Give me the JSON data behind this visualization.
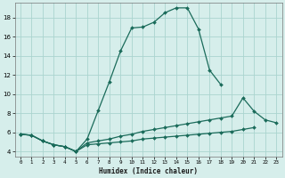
{
  "xlabel": "Humidex (Indice chaleur)",
  "background_color": "#d6eeeb",
  "grid_color": "#aad4cf",
  "line_color": "#1a6b5a",
  "xlim": [
    -0.5,
    23.5
  ],
  "ylim": [
    3.5,
    19.5
  ],
  "xticks": [
    0,
    1,
    2,
    3,
    4,
    5,
    6,
    7,
    8,
    9,
    10,
    11,
    12,
    13,
    14,
    15,
    16,
    17,
    18,
    19,
    20,
    21,
    22,
    23
  ],
  "yticks": [
    4,
    6,
    8,
    10,
    12,
    14,
    16,
    18
  ],
  "series": [
    {
      "x": [
        0,
        1,
        2,
        3,
        4,
        5,
        6,
        7,
        8,
        9,
        10,
        11,
        12,
        13,
        14,
        15,
        16,
        17,
        18
      ],
      "y": [
        5.8,
        5.7,
        5.1,
        4.7,
        4.5,
        4.0,
        5.3,
        8.3,
        11.3,
        14.5,
        16.9,
        17.0,
        17.5,
        18.5,
        19.0,
        19.0,
        16.8,
        12.5,
        11.0
      ]
    },
    {
      "x": [
        0,
        1,
        2,
        3,
        4,
        5,
        6,
        7,
        8,
        9,
        10,
        11,
        12,
        13,
        14,
        15,
        16,
        17,
        18,
        19,
        20,
        21,
        22,
        23
      ],
      "y": [
        5.8,
        5.7,
        5.1,
        4.7,
        4.5,
        4.0,
        4.9,
        5.1,
        5.3,
        5.6,
        5.8,
        6.1,
        6.3,
        6.5,
        6.7,
        6.9,
        7.1,
        7.3,
        7.5,
        7.7,
        9.6,
        8.2,
        7.3,
        7.0
      ]
    },
    {
      "x": [
        0,
        1,
        2,
        3,
        4,
        5,
        6,
        7,
        8,
        9,
        10,
        11,
        12,
        13,
        14,
        15,
        16,
        17,
        18,
        19,
        20,
        21
      ],
      "y": [
        5.8,
        5.7,
        5.1,
        4.7,
        4.5,
        4.0,
        4.7,
        4.8,
        4.9,
        5.0,
        5.1,
        5.3,
        5.4,
        5.5,
        5.6,
        5.7,
        5.8,
        5.9,
        6.0,
        6.1,
        6.3,
        6.5
      ]
    }
  ]
}
